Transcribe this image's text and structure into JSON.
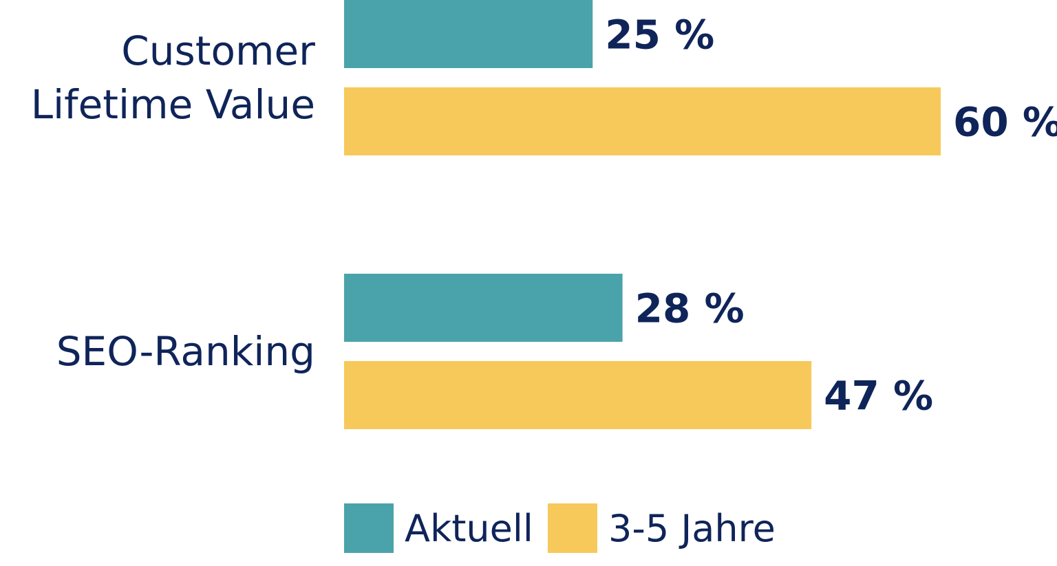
{
  "chart_data": {
    "type": "bar",
    "orientation": "horizontal",
    "categories": [
      "Customer Lifetime Value",
      "SEO-Ranking"
    ],
    "category_lines": [
      [
        "Customer",
        "Lifetime Value"
      ],
      [
        "SEO-Ranking"
      ]
    ],
    "series": [
      {
        "name": "Aktuell",
        "values": [
          25,
          28
        ],
        "labels": [
          "25 %",
          "28 %"
        ],
        "color": "#4aa3aa"
      },
      {
        "name": "3-5 Jahre",
        "values": [
          60,
          47
        ],
        "labels": [
          "60 %",
          "47 %"
        ],
        "color": "#f7c95a"
      }
    ],
    "title": "",
    "xlabel": "",
    "ylabel": "",
    "xlim": [
      0,
      60
    ],
    "grid": false,
    "legend_position": "bottom"
  }
}
